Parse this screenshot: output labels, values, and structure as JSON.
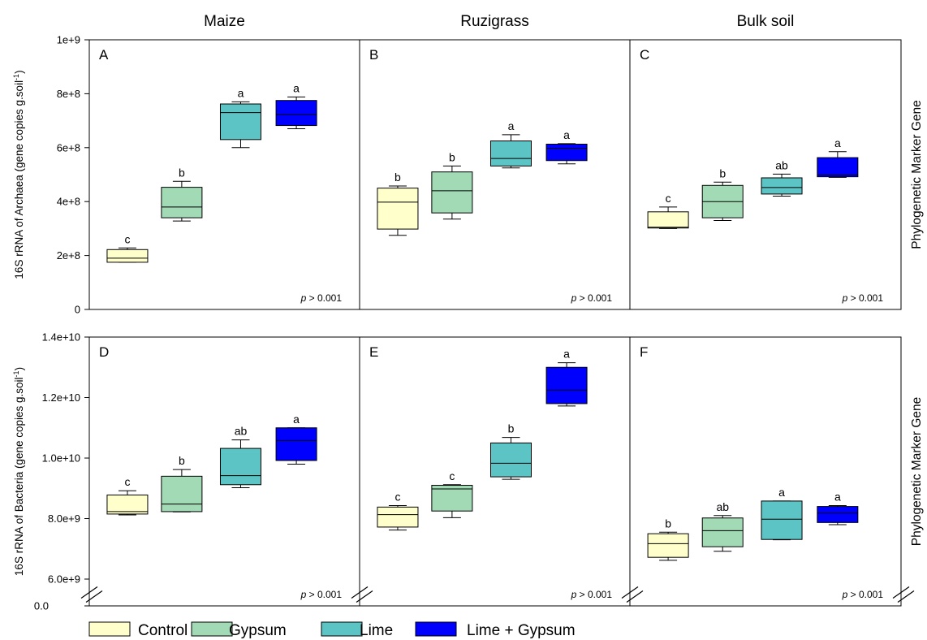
{
  "chart_data": {
    "type": "boxplot",
    "column_titles": [
      "Maize",
      "Ruzigrass",
      "Bulk soil"
    ],
    "side_label": "Phylogenetic Marker Gene",
    "legend": [
      {
        "name": "Control",
        "color": "#ffffcc"
      },
      {
        "name": "Gypsum",
        "color": "#a1dab4"
      },
      {
        "name": "Lime",
        "color": "#5cc4c4"
      },
      {
        "name": "Lime + Gypsum",
        "color": "#0000ff"
      }
    ],
    "rows": [
      {
        "ylabel_main": "16S rRNA of Archaea (gene copies g.soil",
        "ylabel_sup": "-1",
        "ylabel_end": ")",
        "ylim": [
          0,
          1000000000
        ],
        "ticks": [
          {
            "value": 0,
            "label": "0"
          },
          {
            "value": 200000000,
            "label": "2e+8"
          },
          {
            "value": 400000000,
            "label": "4e+8"
          },
          {
            "value": 600000000,
            "label": "6e+8"
          },
          {
            "value": 800000000,
            "label": "8e+8"
          },
          {
            "value": 1000000000,
            "label": "1e+9"
          }
        ],
        "axis_break": false,
        "panels": [
          {
            "letter": "A",
            "p_label": "p",
            "p_rest": " > 0.001",
            "boxes": [
              {
                "min": 175000000,
                "q1": 175000000,
                "median": 190000000,
                "q3": 222000000,
                "max": 228000000,
                "sig": "c"
              },
              {
                "min": 328000000,
                "q1": 340000000,
                "median": 380000000,
                "q3": 453000000,
                "max": 475000000,
                "sig": "b"
              },
              {
                "min": 600000000,
                "q1": 630000000,
                "median": 730000000,
                "q3": 762000000,
                "max": 770000000,
                "sig": "a"
              },
              {
                "min": 670000000,
                "q1": 682000000,
                "median": 722000000,
                "q3": 775000000,
                "max": 788000000,
                "sig": "a"
              }
            ]
          },
          {
            "letter": "B",
            "p_label": "p",
            "p_rest": " > 0.001",
            "boxes": [
              {
                "min": 275000000,
                "q1": 298000000,
                "median": 398000000,
                "q3": 450000000,
                "max": 458000000,
                "sig": "b"
              },
              {
                "min": 335000000,
                "q1": 358000000,
                "median": 440000000,
                "q3": 510000000,
                "max": 532000000,
                "sig": "b"
              },
              {
                "min": 525000000,
                "q1": 532000000,
                "median": 560000000,
                "q3": 625000000,
                "max": 648000000,
                "sig": "a"
              },
              {
                "min": 540000000,
                "q1": 552000000,
                "median": 598000000,
                "q3": 613000000,
                "max": 615000000,
                "sig": "a"
              }
            ]
          },
          {
            "letter": "C",
            "p_label": "p",
            "p_rest": " > 0.001",
            "boxes": [
              {
                "min": 300000000,
                "q1": 302000000,
                "median": 305000000,
                "q3": 362000000,
                "max": 380000000,
                "sig": "c"
              },
              {
                "min": 330000000,
                "q1": 340000000,
                "median": 400000000,
                "q3": 460000000,
                "max": 472000000,
                "sig": "b"
              },
              {
                "min": 420000000,
                "q1": 428000000,
                "median": 452000000,
                "q3": 488000000,
                "max": 502000000,
                "sig": "ab"
              },
              {
                "min": 490000000,
                "q1": 492000000,
                "median": 498000000,
                "q3": 563000000,
                "max": 585000000,
                "sig": "a"
              }
            ]
          }
        ]
      },
      {
        "ylabel_main": "16S rRNA of Bacteria (gene copies g.soil",
        "ylabel_sup": "-1",
        "ylabel_end": ")",
        "ylim": [
          6000000000,
          14000000000
        ],
        "ticks": [
          {
            "value": 6000000000,
            "label": "6.0e+9"
          },
          {
            "value": 8000000000,
            "label": "8.0e+9"
          },
          {
            "value": 10000000000,
            "label": "1.0e+10"
          },
          {
            "value": 12000000000,
            "label": "1.2e+10"
          },
          {
            "value": 14000000000,
            "label": "1.4e+10"
          }
        ],
        "axis_break": true,
        "break_bottom_label": "0.0",
        "panels": [
          {
            "letter": "D",
            "p_label": "p",
            "p_rest": " > 0.001",
            "boxes": [
              {
                "min": 8120000000,
                "q1": 8150000000,
                "median": 8230000000,
                "q3": 8780000000,
                "max": 8920000000,
                "sig": "c"
              },
              {
                "min": 8220000000,
                "q1": 8230000000,
                "median": 8480000000,
                "q3": 9400000000,
                "max": 9620000000,
                "sig": "b"
              },
              {
                "min": 9020000000,
                "q1": 9120000000,
                "median": 9420000000,
                "q3": 10320000000,
                "max": 10600000000,
                "sig": "ab"
              },
              {
                "min": 9800000000,
                "q1": 9920000000,
                "median": 10580000000,
                "q3": 11000000000,
                "max": 11000000000,
                "sig": "a"
              }
            ]
          },
          {
            "letter": "E",
            "p_label": "p",
            "p_rest": " > 0.001",
            "boxes": [
              {
                "min": 7620000000,
                "q1": 7720000000,
                "median": 8130000000,
                "q3": 8380000000,
                "max": 8430000000,
                "sig": "c"
              },
              {
                "min": 8030000000,
                "q1": 8250000000,
                "median": 8980000000,
                "q3": 9100000000,
                "max": 9120000000,
                "sig": "c"
              },
              {
                "min": 9300000000,
                "q1": 9380000000,
                "median": 9830000000,
                "q3": 10500000000,
                "max": 10680000000,
                "sig": "b"
              },
              {
                "min": 11720000000,
                "q1": 11800000000,
                "median": 12250000000,
                "q3": 13000000000,
                "max": 13150000000,
                "sig": "a"
              }
            ]
          },
          {
            "letter": "F",
            "p_label": "p",
            "p_rest": " > 0.001",
            "boxes": [
              {
                "min": 6620000000,
                "q1": 6720000000,
                "median": 7170000000,
                "q3": 7500000000,
                "max": 7550000000,
                "sig": "b"
              },
              {
                "min": 6920000000,
                "q1": 7070000000,
                "median": 7600000000,
                "q3": 8020000000,
                "max": 8100000000,
                "sig": "ab"
              },
              {
                "min": 7300000000,
                "q1": 7310000000,
                "median": 7980000000,
                "q3": 8580000000,
                "max": 8580000000,
                "sig": "a"
              },
              {
                "min": 7800000000,
                "q1": 7870000000,
                "median": 8180000000,
                "q3": 8400000000,
                "max": 8430000000,
                "sig": "a"
              }
            ]
          }
        ]
      }
    ]
  }
}
